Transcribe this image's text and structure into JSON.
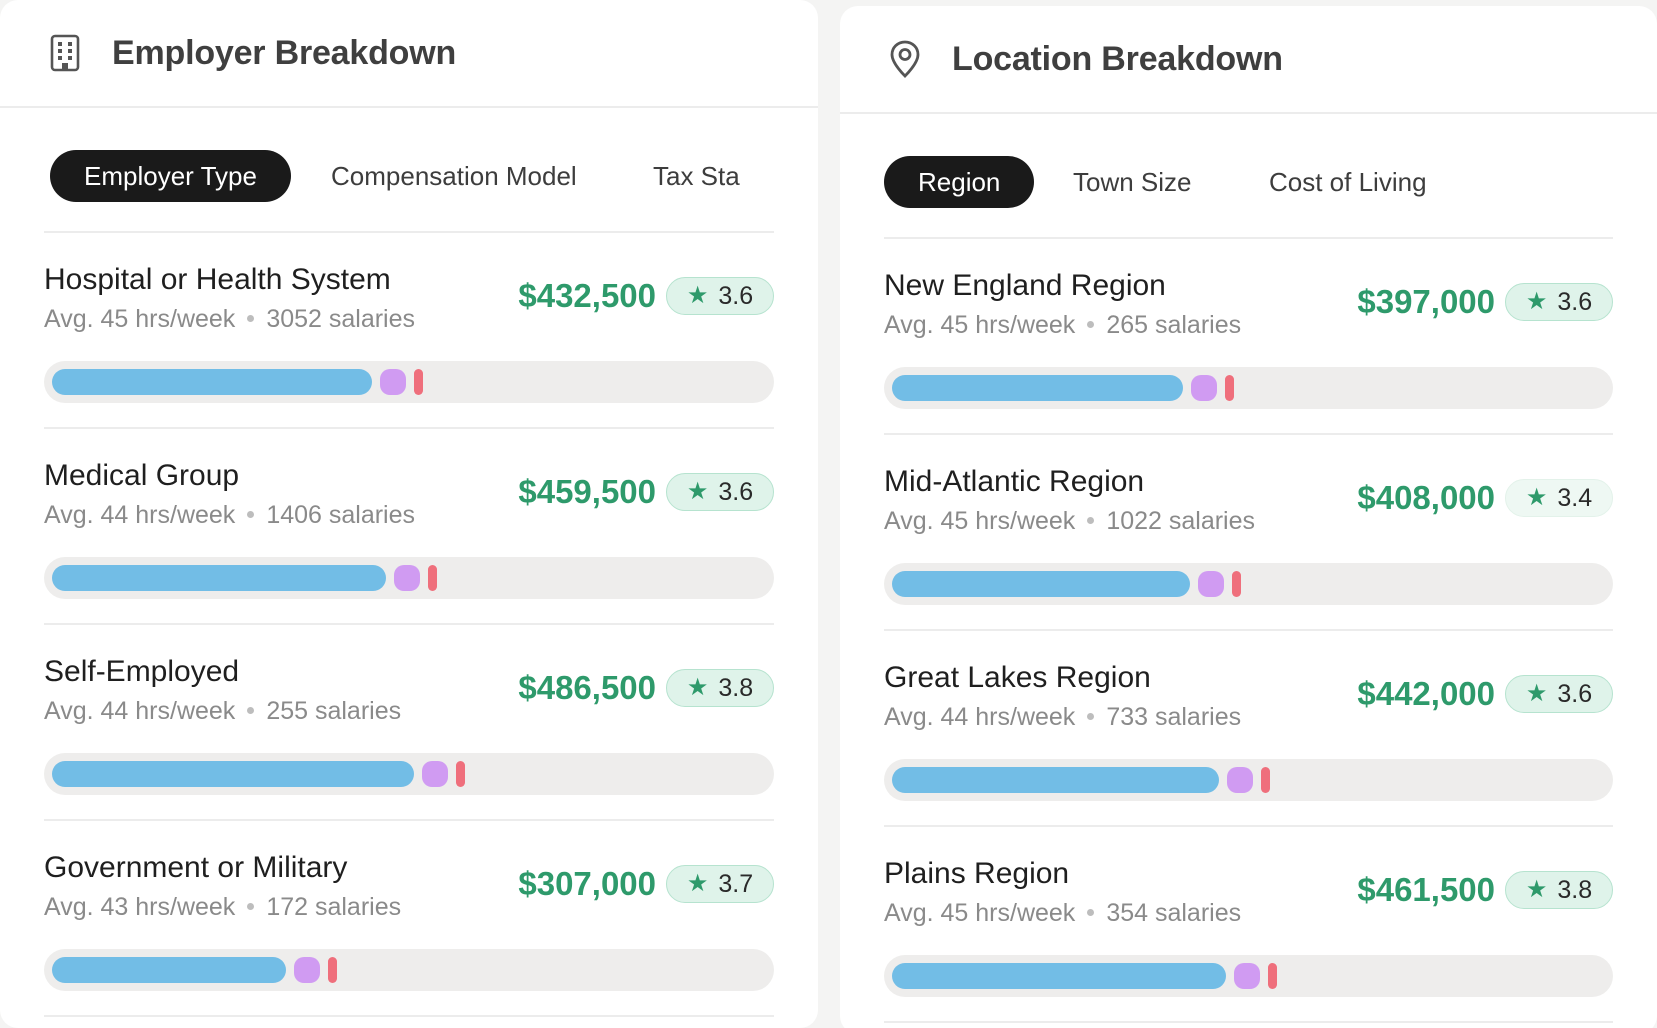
{
  "employer": {
    "title": "Employer Breakdown",
    "icon": "building-icon",
    "tabs": [
      {
        "label": "Employer Type",
        "active": true
      },
      {
        "label": "Compensation Model",
        "active": false
      },
      {
        "label": "Tax Sta",
        "active": false
      }
    ],
    "rows": [
      {
        "name": "Hospital or Health System",
        "hours": "Avg. 45 hrs/week",
        "salaries": "3052 salaries",
        "salary": "$432,500",
        "rating": "3.6",
        "share": 0.45
      },
      {
        "name": "Medical Group",
        "hours": "Avg. 44 hrs/week",
        "salaries": "1406 salaries",
        "salary": "$459,500",
        "rating": "3.6",
        "share": 0.47
      },
      {
        "name": "Self-Employed",
        "hours": "Avg. 44 hrs/week",
        "salaries": "255 salaries",
        "salary": "$486,500",
        "rating": "3.8",
        "share": 0.51
      },
      {
        "name": "Government or Military",
        "hours": "Avg. 43 hrs/week",
        "salaries": "172 salaries",
        "salary": "$307,000",
        "rating": "3.7",
        "share": 0.33
      }
    ]
  },
  "location": {
    "title": "Location Breakdown",
    "icon": "map-pin-icon",
    "tabs": [
      {
        "label": "Region",
        "active": true
      },
      {
        "label": "Town Size",
        "active": false
      },
      {
        "label": "Cost of Living",
        "active": false
      }
    ],
    "rows": [
      {
        "name": "New England Region",
        "hours": "Avg. 45 hrs/week",
        "salaries": "265 salaries",
        "salary": "$397,000",
        "rating": "3.6",
        "share": 0.41
      },
      {
        "name": "Mid-Atlantic Region",
        "hours": "Avg. 45 hrs/week",
        "salaries": "1022 salaries",
        "salary": "$408,000",
        "rating": "3.4",
        "share": 0.42
      },
      {
        "name": "Great Lakes Region",
        "hours": "Avg. 44 hrs/week",
        "salaries": "733 salaries",
        "salary": "$442,000",
        "rating": "3.6",
        "share": 0.46
      },
      {
        "name": "Plains Region",
        "hours": "Avg. 45 hrs/week",
        "salaries": "354 salaries",
        "salary": "$461,500",
        "rating": "3.8",
        "share": 0.47
      }
    ]
  },
  "colors": {
    "salary": "#2e9a6b",
    "bar_primary": "#72bde6",
    "bar_secondary": "#d09bf2",
    "bar_tertiary": "#ef6f7c",
    "tab_active_bg": "#1a1a1a"
  }
}
